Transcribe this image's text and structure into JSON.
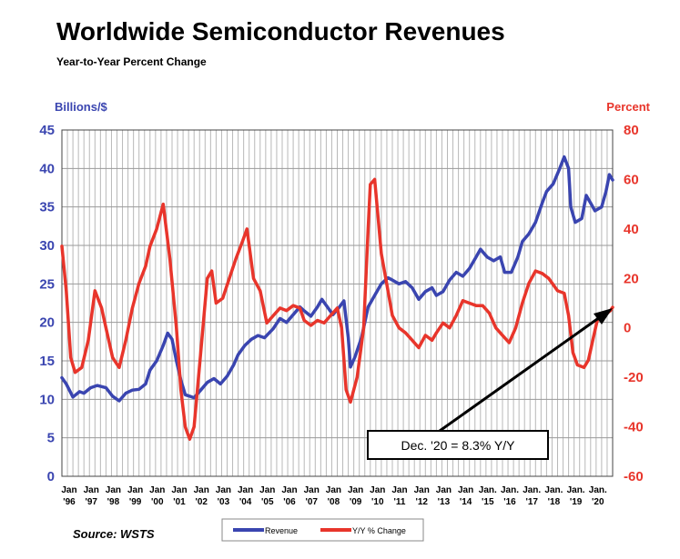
{
  "chart_data": {
    "type": "line",
    "title": "Worldwide Semiconductor Revenues",
    "subtitle": "Year-to-Year Percent Change",
    "ylabel_left": "Billions/$",
    "ylabel_right": "Percent",
    "source": "Source: WSTS",
    "ylim_left": [
      0,
      45
    ],
    "ylim_right": [
      -60,
      80
    ],
    "yticks_left": [
      "0",
      "5",
      "10",
      "15",
      "20",
      "25",
      "30",
      "35",
      "40",
      "45"
    ],
    "yticks_right": [
      "-60",
      "-40",
      "-20",
      "0",
      "20",
      "40",
      "60",
      "80"
    ],
    "xticks": [
      {
        "top": "Jan",
        "bottom": "'96"
      },
      {
        "top": "Jan",
        "bottom": "'97"
      },
      {
        "top": "Jan",
        "bottom": "'98"
      },
      {
        "top": "Jan",
        "bottom": "'99"
      },
      {
        "top": "Jan",
        "bottom": "'00"
      },
      {
        "top": "Jan",
        "bottom": "'01"
      },
      {
        "top": "Jan",
        "bottom": "'02"
      },
      {
        "top": "Jan",
        "bottom": "'03"
      },
      {
        "top": "Jan",
        "bottom": "'04"
      },
      {
        "top": "Jan",
        "bottom": "'05"
      },
      {
        "top": "Jan",
        "bottom": "'06"
      },
      {
        "top": "Jan",
        "bottom": "'07"
      },
      {
        "top": "Jan",
        "bottom": "'08"
      },
      {
        "top": "Jan",
        "bottom": "'09"
      },
      {
        "top": "Jan",
        "bottom": "'10"
      },
      {
        "top": "Jan",
        "bottom": "'11"
      },
      {
        "top": "Jan",
        "bottom": "'12"
      },
      {
        "top": "Jan",
        "bottom": "'13"
      },
      {
        "top": "Jan",
        "bottom": "'14"
      },
      {
        "top": "Jan.",
        "bottom": "'15"
      },
      {
        "top": "Jan.",
        "bottom": "'16"
      },
      {
        "top": "Jan.",
        "bottom": "'17"
      },
      {
        "top": "Jan.",
        "bottom": "'18"
      },
      {
        "top": "Jan.",
        "bottom": "'19"
      },
      {
        "top": "Jan.",
        "bottom": "'20"
      }
    ],
    "grid": true,
    "legend_position": "bottom-center",
    "annotation": "Dec. '20 = 8.3% Y/Y",
    "series": [
      {
        "name": "Revenue",
        "axis": "left",
        "color": "#3a45b0",
        "points": [
          [
            1996.0,
            12.8
          ],
          [
            1996.2,
            12.0
          ],
          [
            1996.5,
            10.3
          ],
          [
            1996.8,
            11.0
          ],
          [
            1997.0,
            10.8
          ],
          [
            1997.3,
            11.5
          ],
          [
            1997.6,
            11.8
          ],
          [
            1998.0,
            11.5
          ],
          [
            1998.3,
            10.4
          ],
          [
            1998.6,
            9.8
          ],
          [
            1998.9,
            10.8
          ],
          [
            1999.2,
            11.2
          ],
          [
            1999.5,
            11.3
          ],
          [
            1999.8,
            12.0
          ],
          [
            2000.0,
            13.8
          ],
          [
            2000.3,
            15.0
          ],
          [
            2000.6,
            17.0
          ],
          [
            2000.8,
            18.6
          ],
          [
            2001.0,
            17.8
          ],
          [
            2001.2,
            15.0
          ],
          [
            2001.4,
            12.5
          ],
          [
            2001.6,
            10.6
          ],
          [
            2001.8,
            10.4
          ],
          [
            2002.0,
            10.2
          ],
          [
            2002.3,
            11.2
          ],
          [
            2002.6,
            12.2
          ],
          [
            2002.9,
            12.7
          ],
          [
            2003.2,
            12.0
          ],
          [
            2003.5,
            13.0
          ],
          [
            2003.8,
            14.5
          ],
          [
            2004.0,
            15.8
          ],
          [
            2004.3,
            17.0
          ],
          [
            2004.6,
            17.8
          ],
          [
            2004.9,
            18.3
          ],
          [
            2005.2,
            18.0
          ],
          [
            2005.6,
            19.2
          ],
          [
            2005.9,
            20.5
          ],
          [
            2006.2,
            20.0
          ],
          [
            2006.5,
            21.0
          ],
          [
            2006.8,
            22.0
          ],
          [
            2007.0,
            21.5
          ],
          [
            2007.3,
            20.8
          ],
          [
            2007.6,
            22.0
          ],
          [
            2007.8,
            23.0
          ],
          [
            2008.0,
            22.2
          ],
          [
            2008.3,
            21.0
          ],
          [
            2008.6,
            22.0
          ],
          [
            2008.8,
            22.8
          ],
          [
            2009.0,
            18.0
          ],
          [
            2009.1,
            14.2
          ],
          [
            2009.3,
            15.5
          ],
          [
            2009.6,
            18.0
          ],
          [
            2009.9,
            22.0
          ],
          [
            2010.2,
            23.5
          ],
          [
            2010.5,
            25.0
          ],
          [
            2010.8,
            25.8
          ],
          [
            2011.0,
            25.5
          ],
          [
            2011.3,
            25.0
          ],
          [
            2011.6,
            25.3
          ],
          [
            2011.9,
            24.5
          ],
          [
            2012.2,
            23.0
          ],
          [
            2012.5,
            24.0
          ],
          [
            2012.8,
            24.5
          ],
          [
            2013.0,
            23.5
          ],
          [
            2013.3,
            24.0
          ],
          [
            2013.6,
            25.5
          ],
          [
            2013.9,
            26.5
          ],
          [
            2014.2,
            26.0
          ],
          [
            2014.5,
            27.0
          ],
          [
            2014.8,
            28.5
          ],
          [
            2015.0,
            29.5
          ],
          [
            2015.3,
            28.5
          ],
          [
            2015.6,
            28.0
          ],
          [
            2015.9,
            28.5
          ],
          [
            2016.1,
            26.5
          ],
          [
            2016.4,
            26.5
          ],
          [
            2016.7,
            28.5
          ],
          [
            2016.9,
            30.5
          ],
          [
            2017.2,
            31.5
          ],
          [
            2017.5,
            33.0
          ],
          [
            2017.8,
            35.5
          ],
          [
            2018.0,
            37.0
          ],
          [
            2018.3,
            38.0
          ],
          [
            2018.6,
            40.0
          ],
          [
            2018.8,
            41.5
          ],
          [
            2019.0,
            40.0
          ],
          [
            2019.1,
            35.0
          ],
          [
            2019.3,
            33.0
          ],
          [
            2019.6,
            33.5
          ],
          [
            2019.8,
            36.5
          ],
          [
            2020.0,
            35.5
          ],
          [
            2020.2,
            34.5
          ],
          [
            2020.5,
            35.0
          ],
          [
            2020.7,
            37.0
          ],
          [
            2020.85,
            39.2
          ],
          [
            2021.0,
            38.5
          ]
        ]
      },
      {
        "name": "Y/Y % Change",
        "axis": "right",
        "color": "#e8352b",
        "points": [
          [
            1996.0,
            33
          ],
          [
            1996.2,
            15
          ],
          [
            1996.4,
            -12
          ],
          [
            1996.6,
            -18
          ],
          [
            1996.9,
            -16
          ],
          [
            1997.2,
            -5
          ],
          [
            1997.5,
            15
          ],
          [
            1997.8,
            8
          ],
          [
            1998.0,
            0
          ],
          [
            1998.3,
            -12
          ],
          [
            1998.6,
            -16
          ],
          [
            1998.9,
            -5
          ],
          [
            1999.2,
            8
          ],
          [
            1999.5,
            18
          ],
          [
            1999.8,
            25
          ],
          [
            2000.0,
            33
          ],
          [
            2000.3,
            40
          ],
          [
            2000.6,
            50
          ],
          [
            2000.9,
            28
          ],
          [
            2001.2,
            0
          ],
          [
            2001.4,
            -25
          ],
          [
            2001.6,
            -40
          ],
          [
            2001.8,
            -45
          ],
          [
            2002.0,
            -40
          ],
          [
            2002.3,
            -10
          ],
          [
            2002.6,
            20
          ],
          [
            2002.8,
            23
          ],
          [
            2003.0,
            10
          ],
          [
            2003.3,
            12
          ],
          [
            2003.6,
            20
          ],
          [
            2003.9,
            28
          ],
          [
            2004.2,
            35
          ],
          [
            2004.4,
            40
          ],
          [
            2004.7,
            20
          ],
          [
            2005.0,
            15
          ],
          [
            2005.3,
            2
          ],
          [
            2005.6,
            5
          ],
          [
            2005.9,
            8
          ],
          [
            2006.2,
            7
          ],
          [
            2006.5,
            9
          ],
          [
            2006.8,
            8
          ],
          [
            2007.0,
            3
          ],
          [
            2007.3,
            1
          ],
          [
            2007.6,
            3
          ],
          [
            2007.9,
            2
          ],
          [
            2008.2,
            5
          ],
          [
            2008.5,
            8
          ],
          [
            2008.7,
            0
          ],
          [
            2008.9,
            -25
          ],
          [
            2009.1,
            -30
          ],
          [
            2009.4,
            -20
          ],
          [
            2009.7,
            0
          ],
          [
            2009.9,
            40
          ],
          [
            2010.0,
            58
          ],
          [
            2010.2,
            60
          ],
          [
            2010.5,
            30
          ],
          [
            2010.8,
            15
          ],
          [
            2011.0,
            5
          ],
          [
            2011.3,
            0
          ],
          [
            2011.6,
            -2
          ],
          [
            2011.9,
            -5
          ],
          [
            2012.2,
            -8
          ],
          [
            2012.5,
            -3
          ],
          [
            2012.8,
            -5
          ],
          [
            2013.0,
            -2
          ],
          [
            2013.3,
            2
          ],
          [
            2013.6,
            0
          ],
          [
            2013.9,
            5
          ],
          [
            2014.2,
            11
          ],
          [
            2014.5,
            10
          ],
          [
            2014.8,
            9
          ],
          [
            2015.1,
            9
          ],
          [
            2015.4,
            6
          ],
          [
            2015.7,
            0
          ],
          [
            2016.0,
            -3
          ],
          [
            2016.3,
            -6
          ],
          [
            2016.6,
            0
          ],
          [
            2016.9,
            10
          ],
          [
            2017.2,
            18
          ],
          [
            2017.5,
            23
          ],
          [
            2017.8,
            22
          ],
          [
            2018.1,
            20
          ],
          [
            2018.5,
            15
          ],
          [
            2018.8,
            14
          ],
          [
            2019.0,
            5
          ],
          [
            2019.2,
            -10
          ],
          [
            2019.4,
            -15
          ],
          [
            2019.7,
            -16
          ],
          [
            2019.9,
            -13
          ],
          [
            2020.1,
            -5
          ],
          [
            2020.3,
            3
          ],
          [
            2020.6,
            5
          ],
          [
            2020.9,
            7
          ],
          [
            2021.0,
            8.3
          ]
        ]
      }
    ]
  }
}
